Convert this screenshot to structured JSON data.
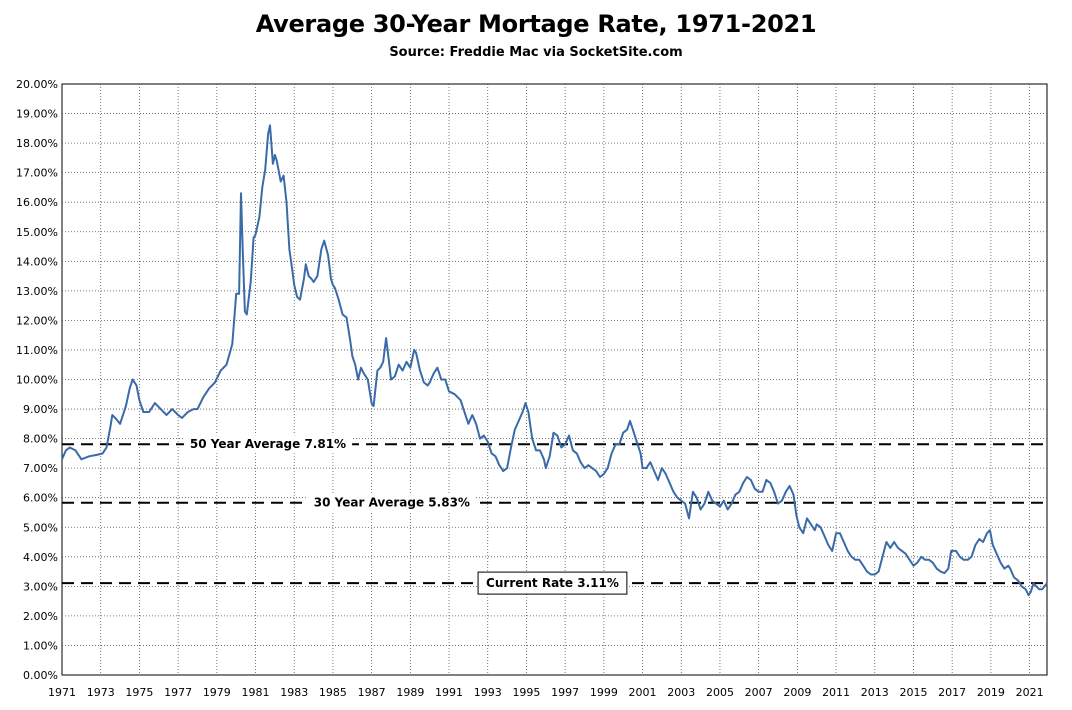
{
  "chart_data": {
    "type": "line",
    "title": "Average 30-Year Mortage Rate, 1971-2021",
    "subtitle": "Source: Freddie Mac via SocketSite.com",
    "xlim": [
      1971,
      2021.9
    ],
    "ylim": [
      0,
      20
    ],
    "x_ticks": [
      "1971",
      "1973",
      "1975",
      "1977",
      "1979",
      "1981",
      "1983",
      "1985",
      "1987",
      "1989",
      "1991",
      "1993",
      "1995",
      "1997",
      "1999",
      "2001",
      "2003",
      "2005",
      "2007",
      "2009",
      "2011",
      "2013",
      "2015",
      "2017",
      "2019",
      "2021"
    ],
    "y_ticks": [
      "0.00%",
      "1.00%",
      "2.00%",
      "3.00%",
      "4.00%",
      "5.00%",
      "6.00%",
      "7.00%",
      "8.00%",
      "9.00%",
      "10.00%",
      "11.00%",
      "12.00%",
      "13.00%",
      "14.00%",
      "15.00%",
      "16.00%",
      "17.00%",
      "18.00%",
      "19.00%",
      "20.00%"
    ],
    "grid": true,
    "line_color": "#3a6ba8",
    "series": [
      {
        "points": [
          [
            1971.0,
            7.3
          ],
          [
            1971.2,
            7.6
          ],
          [
            1971.4,
            7.7
          ],
          [
            1971.7,
            7.6
          ],
          [
            1972.0,
            7.3
          ],
          [
            1972.4,
            7.4
          ],
          [
            1972.8,
            7.45
          ],
          [
            1973.1,
            7.5
          ],
          [
            1973.3,
            7.7
          ],
          [
            1973.5,
            8.4
          ],
          [
            1973.6,
            8.8
          ],
          [
            1973.75,
            8.7
          ],
          [
            1974.0,
            8.5
          ],
          [
            1974.3,
            9.1
          ],
          [
            1974.5,
            9.7
          ],
          [
            1974.65,
            10.0
          ],
          [
            1974.85,
            9.8
          ],
          [
            1975.0,
            9.3
          ],
          [
            1975.2,
            8.9
          ],
          [
            1975.5,
            8.9
          ],
          [
            1975.8,
            9.2
          ],
          [
            1976.1,
            9.0
          ],
          [
            1976.4,
            8.8
          ],
          [
            1976.7,
            9.0
          ],
          [
            1977.0,
            8.8
          ],
          [
            1977.2,
            8.7
          ],
          [
            1977.5,
            8.9
          ],
          [
            1977.8,
            9.0
          ],
          [
            1978.0,
            9.0
          ],
          [
            1978.3,
            9.4
          ],
          [
            1978.6,
            9.7
          ],
          [
            1978.9,
            9.9
          ],
          [
            1979.2,
            10.3
          ],
          [
            1979.5,
            10.5
          ],
          [
            1979.8,
            11.2
          ],
          [
            1980.0,
            12.9
          ],
          [
            1980.15,
            12.9
          ],
          [
            1980.25,
            16.3
          ],
          [
            1980.35,
            14.2
          ],
          [
            1980.45,
            12.3
          ],
          [
            1980.55,
            12.2
          ],
          [
            1980.75,
            13.3
          ],
          [
            1980.9,
            14.8
          ],
          [
            1981.0,
            14.9
          ],
          [
            1981.2,
            15.5
          ],
          [
            1981.35,
            16.5
          ],
          [
            1981.5,
            17.1
          ],
          [
            1981.65,
            18.3
          ],
          [
            1981.75,
            18.6
          ],
          [
            1981.9,
            17.3
          ],
          [
            1982.0,
            17.6
          ],
          [
            1982.1,
            17.4
          ],
          [
            1982.3,
            16.7
          ],
          [
            1982.45,
            16.9
          ],
          [
            1982.6,
            16.0
          ],
          [
            1982.75,
            14.4
          ],
          [
            1982.9,
            13.7
          ],
          [
            1983.0,
            13.2
          ],
          [
            1983.15,
            12.8
          ],
          [
            1983.3,
            12.7
          ],
          [
            1983.5,
            13.4
          ],
          [
            1983.6,
            13.9
          ],
          [
            1983.75,
            13.5
          ],
          [
            1983.9,
            13.4
          ],
          [
            1984.0,
            13.3
          ],
          [
            1984.2,
            13.5
          ],
          [
            1984.4,
            14.4
          ],
          [
            1984.55,
            14.7
          ],
          [
            1984.75,
            14.2
          ],
          [
            1984.9,
            13.4
          ],
          [
            1985.0,
            13.2
          ],
          [
            1985.1,
            13.1
          ],
          [
            1985.3,
            12.7
          ],
          [
            1985.5,
            12.2
          ],
          [
            1985.7,
            12.1
          ],
          [
            1985.9,
            11.3
          ],
          [
            1986.0,
            10.8
          ],
          [
            1986.15,
            10.5
          ],
          [
            1986.3,
            10.0
          ],
          [
            1986.45,
            10.4
          ],
          [
            1986.6,
            10.2
          ],
          [
            1986.8,
            10.0
          ],
          [
            1987.0,
            9.2
          ],
          [
            1987.1,
            9.1
          ],
          [
            1987.3,
            10.3
          ],
          [
            1987.45,
            10.4
          ],
          [
            1987.6,
            10.6
          ],
          [
            1987.75,
            11.4
          ],
          [
            1987.9,
            10.6
          ],
          [
            1988.0,
            10.0
          ],
          [
            1988.2,
            10.1
          ],
          [
            1988.4,
            10.5
          ],
          [
            1988.6,
            10.3
          ],
          [
            1988.8,
            10.6
          ],
          [
            1989.0,
            10.4
          ],
          [
            1989.2,
            11.0
          ],
          [
            1989.3,
            10.9
          ],
          [
            1989.5,
            10.3
          ],
          [
            1989.7,
            9.9
          ],
          [
            1989.9,
            9.8
          ],
          [
            1990.0,
            9.9
          ],
          [
            1990.2,
            10.2
          ],
          [
            1990.4,
            10.4
          ],
          [
            1990.6,
            10.0
          ],
          [
            1990.8,
            10.0
          ],
          [
            1991.0,
            9.6
          ],
          [
            1991.3,
            9.5
          ],
          [
            1991.6,
            9.3
          ],
          [
            1991.9,
            8.7
          ],
          [
            1992.0,
            8.5
          ],
          [
            1992.2,
            8.8
          ],
          [
            1992.4,
            8.5
          ],
          [
            1992.6,
            8.0
          ],
          [
            1992.8,
            8.1
          ],
          [
            1993.0,
            7.9
          ],
          [
            1993.2,
            7.5
          ],
          [
            1993.4,
            7.4
          ],
          [
            1993.6,
            7.1
          ],
          [
            1993.8,
            6.9
          ],
          [
            1994.0,
            7.0
          ],
          [
            1994.2,
            7.7
          ],
          [
            1994.4,
            8.3
          ],
          [
            1994.6,
            8.6
          ],
          [
            1994.8,
            8.9
          ],
          [
            1994.95,
            9.2
          ],
          [
            1995.1,
            8.9
          ],
          [
            1995.3,
            8.0
          ],
          [
            1995.5,
            7.6
          ],
          [
            1995.7,
            7.6
          ],
          [
            1995.9,
            7.3
          ],
          [
            1996.0,
            7.0
          ],
          [
            1996.2,
            7.4
          ],
          [
            1996.4,
            8.2
          ],
          [
            1996.6,
            8.1
          ],
          [
            1996.8,
            7.7
          ],
          [
            1997.0,
            7.8
          ],
          [
            1997.2,
            8.1
          ],
          [
            1997.4,
            7.6
          ],
          [
            1997.6,
            7.5
          ],
          [
            1997.8,
            7.2
          ],
          [
            1998.0,
            7.0
          ],
          [
            1998.2,
            7.1
          ],
          [
            1998.4,
            7.0
          ],
          [
            1998.6,
            6.9
          ],
          [
            1998.8,
            6.7
          ],
          [
            1999.0,
            6.8
          ],
          [
            1999.2,
            7.0
          ],
          [
            1999.4,
            7.5
          ],
          [
            1999.6,
            7.8
          ],
          [
            1999.8,
            7.8
          ],
          [
            2000.0,
            8.2
          ],
          [
            2000.2,
            8.3
          ],
          [
            2000.35,
            8.6
          ],
          [
            2000.5,
            8.3
          ],
          [
            2000.7,
            7.9
          ],
          [
            2000.9,
            7.5
          ],
          [
            2001.0,
            7.0
          ],
          [
            2001.2,
            7.0
          ],
          [
            2001.4,
            7.2
          ],
          [
            2001.6,
            6.9
          ],
          [
            2001.8,
            6.6
          ],
          [
            2002.0,
            7.0
          ],
          [
            2002.2,
            6.8
          ],
          [
            2002.4,
            6.5
          ],
          [
            2002.6,
            6.2
          ],
          [
            2002.8,
            6.0
          ],
          [
            2003.0,
            5.9
          ],
          [
            2003.2,
            5.8
          ],
          [
            2003.4,
            5.3
          ],
          [
            2003.6,
            6.2
          ],
          [
            2003.8,
            6.0
          ],
          [
            2004.0,
            5.6
          ],
          [
            2004.2,
            5.8
          ],
          [
            2004.4,
            6.2
          ],
          [
            2004.6,
            5.9
          ],
          [
            2004.8,
            5.8
          ],
          [
            2005.0,
            5.7
          ],
          [
            2005.2,
            5.9
          ],
          [
            2005.4,
            5.6
          ],
          [
            2005.6,
            5.8
          ],
          [
            2005.8,
            6.1
          ],
          [
            2006.0,
            6.2
          ],
          [
            2006.2,
            6.5
          ],
          [
            2006.4,
            6.7
          ],
          [
            2006.6,
            6.6
          ],
          [
            2006.8,
            6.3
          ],
          [
            2007.0,
            6.2
          ],
          [
            2007.2,
            6.2
          ],
          [
            2007.4,
            6.6
          ],
          [
            2007.6,
            6.5
          ],
          [
            2007.8,
            6.2
          ],
          [
            2008.0,
            5.8
          ],
          [
            2008.2,
            5.9
          ],
          [
            2008.4,
            6.2
          ],
          [
            2008.6,
            6.4
          ],
          [
            2008.8,
            6.1
          ],
          [
            2008.95,
            5.4
          ],
          [
            2009.1,
            5.0
          ],
          [
            2009.3,
            4.8
          ],
          [
            2009.5,
            5.3
          ],
          [
            2009.7,
            5.1
          ],
          [
            2009.9,
            4.9
          ],
          [
            2010.0,
            5.1
          ],
          [
            2010.2,
            5.0
          ],
          [
            2010.4,
            4.7
          ],
          [
            2010.6,
            4.4
          ],
          [
            2010.8,
            4.2
          ],
          [
            2011.0,
            4.8
          ],
          [
            2011.2,
            4.8
          ],
          [
            2011.4,
            4.5
          ],
          [
            2011.6,
            4.2
          ],
          [
            2011.8,
            4.0
          ],
          [
            2012.0,
            3.9
          ],
          [
            2012.2,
            3.9
          ],
          [
            2012.4,
            3.7
          ],
          [
            2012.6,
            3.5
          ],
          [
            2012.8,
            3.4
          ],
          [
            2013.0,
            3.4
          ],
          [
            2013.2,
            3.5
          ],
          [
            2013.4,
            4.0
          ],
          [
            2013.6,
            4.5
          ],
          [
            2013.8,
            4.3
          ],
          [
            2014.0,
            4.5
          ],
          [
            2014.2,
            4.3
          ],
          [
            2014.4,
            4.2
          ],
          [
            2014.6,
            4.1
          ],
          [
            2014.8,
            3.9
          ],
          [
            2015.0,
            3.7
          ],
          [
            2015.2,
            3.8
          ],
          [
            2015.4,
            4.0
          ],
          [
            2015.6,
            3.9
          ],
          [
            2015.8,
            3.9
          ],
          [
            2016.0,
            3.8
          ],
          [
            2016.2,
            3.6
          ],
          [
            2016.4,
            3.5
          ],
          [
            2016.6,
            3.45
          ],
          [
            2016.8,
            3.6
          ],
          [
            2016.95,
            4.2
          ],
          [
            2017.2,
            4.2
          ],
          [
            2017.4,
            4.0
          ],
          [
            2017.6,
            3.9
          ],
          [
            2017.8,
            3.9
          ],
          [
            2018.0,
            4.0
          ],
          [
            2018.2,
            4.4
          ],
          [
            2018.4,
            4.6
          ],
          [
            2018.6,
            4.5
          ],
          [
            2018.8,
            4.8
          ],
          [
            2018.95,
            4.9
          ],
          [
            2019.1,
            4.4
          ],
          [
            2019.3,
            4.1
          ],
          [
            2019.5,
            3.8
          ],
          [
            2019.7,
            3.6
          ],
          [
            2019.9,
            3.7
          ],
          [
            2020.0,
            3.6
          ],
          [
            2020.2,
            3.3
          ],
          [
            2020.4,
            3.2
          ],
          [
            2020.6,
            3.0
          ],
          [
            2020.8,
            2.9
          ],
          [
            2020.95,
            2.7
          ],
          [
            2021.05,
            2.8
          ],
          [
            2021.2,
            3.1
          ],
          [
            2021.35,
            3.0
          ],
          [
            2021.5,
            2.9
          ],
          [
            2021.65,
            2.9
          ],
          [
            2021.9,
            3.11
          ]
        ]
      }
    ],
    "reference_lines": [
      {
        "y": 7.81,
        "label": "50 Year Average 7.81%",
        "label_x": 1977.3
      },
      {
        "y": 5.83,
        "label": "30 Year Average 5.83%",
        "label_x": 1983.7
      },
      {
        "y": 3.11,
        "label": "Current Rate 3.11%",
        "label_x": 1992.5,
        "boxed": true
      }
    ]
  }
}
